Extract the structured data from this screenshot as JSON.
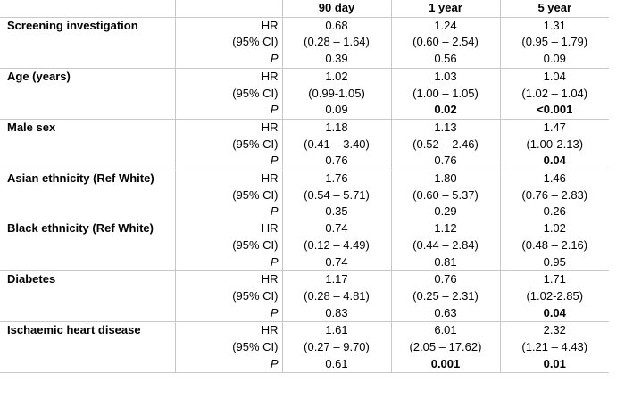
{
  "table": {
    "columns": [
      "",
      "",
      "90 day",
      "1 year",
      "5 year"
    ],
    "rows": [
      {
        "variable": "Screening investigation",
        "stat": "HR",
        "values": [
          "0.68",
          "1.24",
          "1.31"
        ],
        "bold": [
          false,
          false,
          false
        ]
      },
      {
        "variable": "",
        "stat": "(95% CI)",
        "values": [
          "(0.28 – 1.64)",
          "(0.60 – 2.54)",
          "(0.95 – 1.79)"
        ],
        "bold": [
          false,
          false,
          false
        ]
      },
      {
        "variable": "",
        "stat": "P",
        "values": [
          "0.39",
          "0.56",
          "0.09"
        ],
        "bold": [
          false,
          false,
          false
        ]
      },
      {
        "variable": "Age (years)",
        "stat": "HR",
        "values": [
          "1.02",
          "1.03",
          "1.04"
        ],
        "bold": [
          false,
          false,
          false
        ]
      },
      {
        "variable": "",
        "stat": "(95% CI)",
        "values": [
          "(0.99-1.05)",
          "(1.00 – 1.05)",
          "(1.02 – 1.04)"
        ],
        "bold": [
          false,
          false,
          false
        ]
      },
      {
        "variable": "",
        "stat": "P",
        "values": [
          "0.09",
          "0.02",
          "<0.001"
        ],
        "bold": [
          false,
          true,
          true
        ]
      },
      {
        "variable": "Male sex",
        "stat": "HR",
        "values": [
          "1.18",
          "1.13",
          "1.47"
        ],
        "bold": [
          false,
          false,
          false
        ]
      },
      {
        "variable": "",
        "stat": "(95% CI)",
        "values": [
          "(0.41 – 3.40)",
          "(0.52 – 2.46)",
          "(1.00-2.13)"
        ],
        "bold": [
          false,
          false,
          false
        ]
      },
      {
        "variable": "",
        "stat": "P",
        "values": [
          "0.76",
          "0.76",
          "0.04"
        ],
        "bold": [
          false,
          false,
          true
        ]
      },
      {
        "variable": "Asian ethnicity (Ref White)",
        "stat": "HR",
        "values": [
          "1.76",
          "1.80",
          "1.46"
        ],
        "bold": [
          false,
          false,
          false
        ]
      },
      {
        "variable": "",
        "stat": "(95% CI)",
        "values": [
          "(0.54 – 5.71)",
          "(0.60 – 5.37)",
          "(0.76 – 2.83)"
        ],
        "bold": [
          false,
          false,
          false
        ]
      },
      {
        "variable": "",
        "stat": "P",
        "values": [
          "0.35",
          "0.29",
          "0.26"
        ],
        "bold": [
          false,
          false,
          false
        ]
      },
      {
        "variable": "Black ethnicity (Ref White)",
        "stat": "HR",
        "values": [
          "0.74",
          "1.12",
          "1.02"
        ],
        "bold": [
          false,
          false,
          false
        ]
      },
      {
        "variable": "",
        "stat": "(95% CI)",
        "values": [
          "(0.12 – 4.49)",
          "(0.44 – 2.84)",
          "(0.48 – 2.16)"
        ],
        "bold": [
          false,
          false,
          false
        ]
      },
      {
        "variable": "",
        "stat": "P",
        "values": [
          "0.74",
          "0.81",
          "0.95"
        ],
        "bold": [
          false,
          false,
          false
        ]
      },
      {
        "variable": "Diabetes",
        "stat": "HR",
        "values": [
          "1.17",
          "0.76",
          "1.71"
        ],
        "bold": [
          false,
          false,
          false
        ]
      },
      {
        "variable": "",
        "stat": "(95% CI)",
        "values": [
          "(0.28 – 4.81)",
          "(0.25 – 2.31)",
          "(1.02-2.85)"
        ],
        "bold": [
          false,
          false,
          false
        ]
      },
      {
        "variable": "",
        "stat": "P",
        "values": [
          "0.83",
          "0.63",
          "0.04"
        ],
        "bold": [
          false,
          false,
          true
        ]
      },
      {
        "variable": "Ischaemic heart disease",
        "stat": "HR",
        "values": [
          "1.61",
          "6.01",
          "2.32"
        ],
        "bold": [
          false,
          false,
          false
        ]
      },
      {
        "variable": "",
        "stat": "(95% CI)",
        "values": [
          "(0.27 – 9.70)",
          "(2.05 – 17.62)",
          "(1.21 – 4.43)"
        ],
        "bold": [
          false,
          false,
          false
        ]
      },
      {
        "variable": "",
        "stat": "P",
        "values": [
          "0.61",
          "0.001",
          "0.01"
        ],
        "bold": [
          false,
          true,
          true
        ]
      }
    ]
  }
}
